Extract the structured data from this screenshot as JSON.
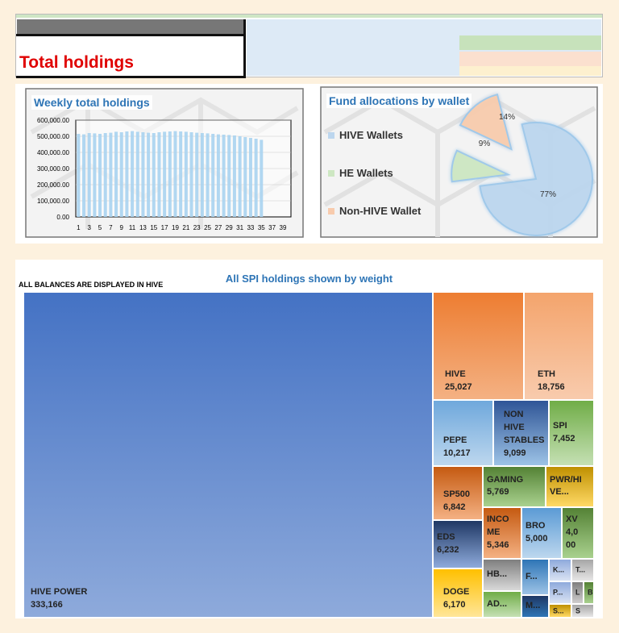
{
  "header": {
    "title": "Total holdings"
  },
  "weekly_chart": {
    "title": "Weekly total holdings"
  },
  "allocation_chart": {
    "title": "Fund allocations by wallet"
  },
  "treemap": {
    "title": "All SPI holdings shown by weight",
    "subtitle": "ALL BALANCES ARE DISPLAYED IN HIVE"
  },
  "chart_data": [
    {
      "type": "bar",
      "title": "Weekly total holdings",
      "xlabel": "",
      "ylabel": "",
      "ylim": [
        0,
        600000
      ],
      "y_ticks": [
        "0.00",
        "100,000.00",
        "200,000.00",
        "300,000.00",
        "400,000.00",
        "500,000.00",
        "600,000.00"
      ],
      "x_ticks": [
        "1",
        "3",
        "5",
        "7",
        "9",
        "11",
        "13",
        "15",
        "17",
        "19",
        "21",
        "23",
        "25",
        "27",
        "29",
        "31",
        "33",
        "35",
        "37",
        "39"
      ],
      "categories": [
        "1",
        "2",
        "3",
        "4",
        "5",
        "6",
        "7",
        "8",
        "9",
        "10",
        "11",
        "12",
        "13",
        "14",
        "15",
        "16",
        "17",
        "18",
        "19",
        "20",
        "21",
        "22",
        "23",
        "24",
        "25",
        "26",
        "27",
        "28",
        "29",
        "30",
        "31",
        "32",
        "33",
        "34",
        "35"
      ],
      "values": [
        515000,
        512000,
        520000,
        518000,
        515000,
        520000,
        522000,
        528000,
        525000,
        530000,
        532000,
        528000,
        525000,
        522000,
        520000,
        525000,
        528000,
        530000,
        532000,
        530000,
        528000,
        525000,
        522000,
        520000,
        518000,
        515000,
        512000,
        510000,
        508000,
        505000,
        500000,
        495000,
        490000,
        485000,
        478000
      ],
      "grid": true,
      "bar_color": "#a9d3ef"
    },
    {
      "type": "pie",
      "title": "Fund allocations by wallet",
      "legend_position": "left",
      "categories": [
        "HIVE Wallets",
        "HE Wallets",
        "Non-HIVE Wallet"
      ],
      "values": [
        77,
        9,
        14
      ],
      "labels": [
        "77%",
        "9%",
        "14%"
      ],
      "colors": [
        "#bcd6ee",
        "#cde7c2",
        "#f8cbad"
      ]
    },
    {
      "type": "treemap",
      "title": "All SPI holdings shown by weight",
      "categories": [
        "HIVE POWER",
        "HIVE",
        "ETH",
        "PEPE",
        "NON HIVE STABLES",
        "SPI",
        "SP500",
        "GAMING",
        "PWR/HIVE...",
        "EDS",
        "INCOME",
        "BRO",
        "XV",
        "DOGE",
        "HB...",
        "F...",
        "K...",
        "T...",
        "P...",
        "L",
        "B",
        "AD...",
        "M...",
        "S...",
        "S"
      ],
      "values": [
        333166,
        25027,
        18756,
        10217,
        9099,
        7452,
        6842,
        5769,
        null,
        6232,
        5346,
        5000,
        4000,
        6170,
        null,
        null,
        null,
        null,
        null,
        null,
        null,
        null,
        null,
        null,
        null
      ]
    }
  ]
}
